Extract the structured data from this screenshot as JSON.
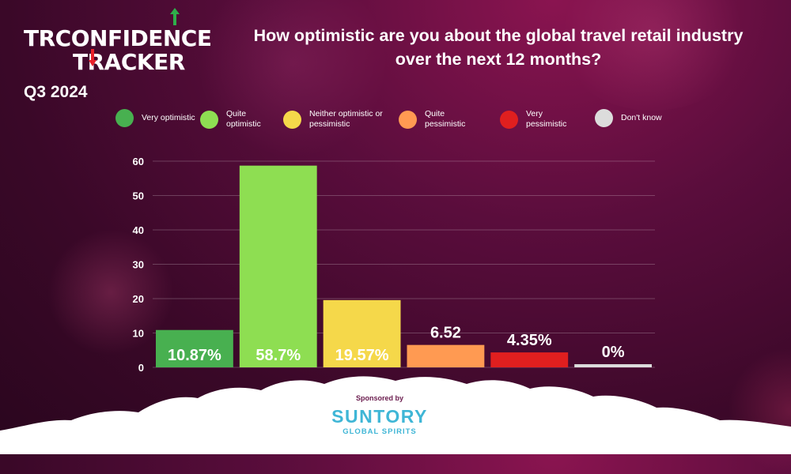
{
  "brand": {
    "logo_part1": "TR",
    "logo_part2": "CONFIDENCE",
    "logo_part3": "TRACKER",
    "quarter": "Q3 2024"
  },
  "sponsor": {
    "by_label": "Sponsored by",
    "name": "SUNTORY",
    "sub": "GLOBAL SPIRITS"
  },
  "colors": {
    "very_optimistic": "#48b050",
    "quite_optimistic": "#8ede52",
    "neutral": "#f5d84a",
    "quite_pessimistic": "#ff9a52",
    "very_pessimistic": "#e01f1f",
    "dont_know": "#dcdcdc",
    "background": "#4a0a32"
  },
  "chart_data": {
    "type": "bar",
    "title": "How optimistic are you about the global travel retail industry over the next 12 months?",
    "categories": [
      "Very optimistic",
      "Quite optimistic",
      "Neither optimistic or pessimistic",
      "Quite pessimistic",
      "Very pessimistic",
      "Don't know"
    ],
    "values": [
      10.87,
      58.7,
      19.57,
      6.52,
      4.35,
      0
    ],
    "data_labels": [
      "10.87%",
      "58.7%",
      "19.57%",
      "6.52",
      "4.35%",
      "0%"
    ],
    "colors": [
      "#48b050",
      "#8ede52",
      "#f5d84a",
      "#ff9a52",
      "#e01f1f",
      "#dcdcdc"
    ],
    "yticks": [
      0,
      10,
      20,
      30,
      40,
      50,
      60
    ],
    "ylim": [
      0,
      60
    ],
    "xlabel": "",
    "ylabel": "",
    "grid": true,
    "legend": "top"
  }
}
